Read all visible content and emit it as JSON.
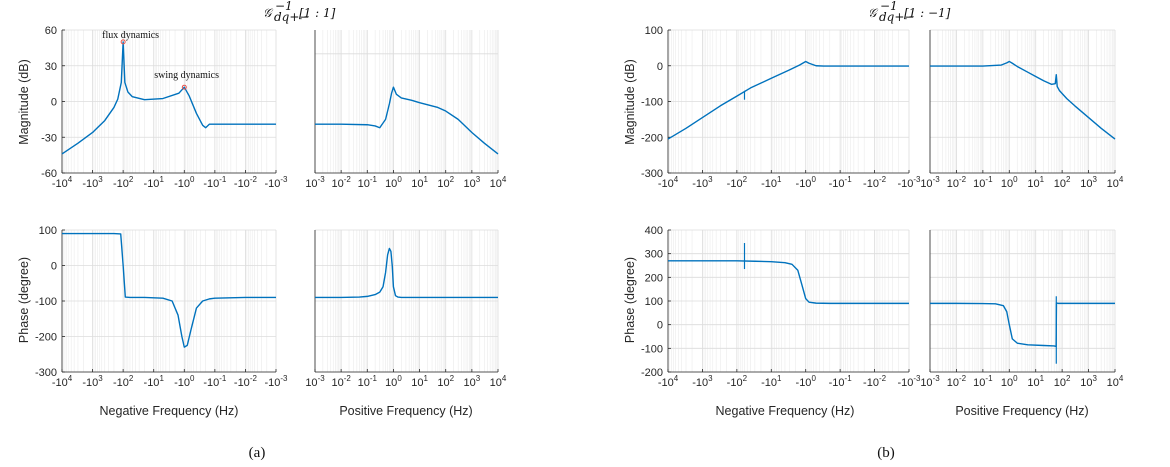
{
  "colors": {
    "line": "#0072BD",
    "marker": "#E8534A",
    "axis": "#262626",
    "grid": "#DCDCDC"
  },
  "figure": {
    "panel_a": {
      "title": {
        "main": "𝒢",
        "sup": "−1",
        "sub": "dq+−",
        "arg": "[1 : 1]"
      },
      "caption": "(a)",
      "annotations": [
        "flux dynamics",
        "swing dynamics"
      ],
      "xlabels": [
        "Negative Frequency (Hz)",
        "Positive Frequency (Hz)"
      ],
      "ylabels": [
        "Magnitude (dB)",
        "Phase (degree)"
      ]
    },
    "panel_b": {
      "title": {
        "main": "𝒢",
        "sup": "−1",
        "sub": "dq+−",
        "arg": "[1 : −1]"
      },
      "caption": "(b)",
      "xlabels": [
        "Negative Frequency (Hz)",
        "Positive Frequency (Hz)"
      ],
      "ylabels": [
        "Magnitude (dB)",
        "Phase (degree)"
      ]
    }
  },
  "chart_data": [
    {
      "type": "line",
      "panel": "a",
      "subplot": "magnitude-negative",
      "xscale": "log",
      "x_axis": "negative",
      "xlim": [
        -10000,
        -0.001
      ],
      "xticklabels": [
        "-10^4",
        "-10^3",
        "-10^2",
        "-10^1",
        "-10^0",
        "-10^-1",
        "-10^-2",
        "-10^-3"
      ],
      "ylabel": "Magnitude (dB)",
      "ylim": [
        -60,
        60
      ],
      "yticks": [
        "60",
        "30",
        "0",
        "-30",
        "-60"
      ],
      "grid": true,
      "series": [
        {
          "x": [
            -10000,
            -3000,
            -1000,
            -400,
            -200,
            -150,
            -115,
            -100,
            -88,
            -70,
            -50,
            -20,
            -5,
            -1.5,
            -1,
            -0.7,
            -0.4,
            -0.25,
            -0.2,
            -0.15,
            -0.1,
            -0.05,
            -0.01,
            -0.001
          ],
          "y": [
            -44,
            -35,
            -26,
            -16,
            -5,
            2,
            16,
            50,
            16,
            8,
            4,
            1.5,
            2.5,
            7,
            12,
            5,
            -10,
            -20,
            -22,
            -19,
            -19,
            -19,
            -19,
            -19
          ]
        }
      ],
      "markers": [
        {
          "x": -100,
          "y": 50,
          "label": "flux dynamics"
        },
        {
          "x": -1,
          "y": 12,
          "label": "swing dynamics"
        }
      ]
    },
    {
      "type": "line",
      "panel": "a",
      "subplot": "magnitude-positive",
      "xscale": "log",
      "xlim": [
        0.001,
        10000
      ],
      "xticklabels": [
        "10^-3",
        "10^-2",
        "10^-1",
        "10^0",
        "10^1",
        "10^2",
        "10^3",
        "10^4"
      ],
      "ylim": [
        -60,
        60
      ],
      "grid": true,
      "series": [
        {
          "x": [
            0.001,
            0.01,
            0.1,
            0.2,
            0.3,
            0.5,
            0.7,
            0.85,
            1,
            1.3,
            2,
            5,
            10,
            50,
            100,
            300,
            1000,
            3000,
            10000
          ],
          "y": [
            -19,
            -19,
            -19.5,
            -20.5,
            -22,
            -15,
            -2,
            7,
            12,
            6,
            3,
            1,
            -1,
            -5,
            -8,
            -15,
            -26,
            -35,
            -44
          ]
        }
      ]
    },
    {
      "type": "line",
      "panel": "a",
      "subplot": "phase-negative",
      "xscale": "log",
      "x_axis": "negative",
      "xlim": [
        -10000,
        -0.001
      ],
      "xticklabels": [
        "-10^4",
        "-10^3",
        "-10^2",
        "-10^1",
        "-10^0",
        "-10^-1",
        "-10^-2",
        "-10^-3"
      ],
      "xlabel": "Negative Frequency (Hz)",
      "ylabel": "Phase (degree)",
      "ylim": [
        -300,
        100
      ],
      "yticks": [
        "100",
        "0",
        "-100",
        "-200",
        "-300"
      ],
      "grid": true,
      "series": [
        {
          "x": [
            -10000,
            -1000,
            -200,
            -120,
            -100,
            -85,
            -60,
            -20,
            -5,
            -2.5,
            -1.6,
            -1.2,
            -1,
            -0.8,
            -0.6,
            -0.4,
            -0.25,
            -0.15,
            -0.1,
            -0.01,
            -0.001
          ],
          "y": [
            90,
            90,
            90,
            89,
            0,
            -89,
            -90,
            -90,
            -92,
            -100,
            -140,
            -200,
            -230,
            -225,
            -180,
            -120,
            -100,
            -94,
            -92,
            -90,
            -90
          ]
        }
      ]
    },
    {
      "type": "line",
      "panel": "a",
      "subplot": "phase-positive",
      "xscale": "log",
      "xlim": [
        0.001,
        10000
      ],
      "xticklabels": [
        "10^-3",
        "10^-2",
        "10^-1",
        "10^0",
        "10^1",
        "10^2",
        "10^3",
        "10^4"
      ],
      "xlabel": "Positive Frequency (Hz)",
      "ylim": [
        -300,
        100
      ],
      "grid": true,
      "series": [
        {
          "x": [
            0.001,
            0.01,
            0.05,
            0.1,
            0.2,
            0.3,
            0.4,
            0.5,
            0.6,
            0.7,
            0.8,
            0.9,
            1,
            1.2,
            1.5,
            2,
            5,
            100,
            10000
          ],
          "y": [
            -90,
            -90,
            -89,
            -87,
            -82,
            -75,
            -60,
            -20,
            30,
            48,
            40,
            0,
            -60,
            -85,
            -89,
            -90,
            -90,
            -90,
            -90
          ]
        }
      ]
    },
    {
      "type": "line",
      "panel": "b",
      "subplot": "magnitude-negative",
      "xscale": "log",
      "x_axis": "negative",
      "xlim": [
        -10000,
        -0.001
      ],
      "xticklabels": [
        "-10^4",
        "-10^3",
        "-10^2",
        "-10^1",
        "-10^0",
        "-10^-1",
        "-10^-2",
        "-10^-3"
      ],
      "ylabel": "Magnitude (dB)",
      "ylim": [
        -300,
        100
      ],
      "yticks": [
        "100",
        "0",
        "-100",
        "-200",
        "-300"
      ],
      "grid": true,
      "series": [
        {
          "x": [
            -10000,
            -3000,
            -1000,
            -300,
            -100,
            -40,
            -10,
            -3,
            -1.5,
            -1,
            -0.8,
            -0.5,
            -0.3,
            -0.1,
            -0.01,
            -0.001
          ],
          "y": [
            -205,
            -175,
            -145,
            -112,
            -85,
            -62,
            -35,
            -12,
            2,
            12,
            7,
            0,
            -1,
            -1,
            -1,
            -1
          ]
        }
      ],
      "glitches": [
        {
          "x": -60,
          "y_from": -70,
          "y_to": -95
        }
      ]
    },
    {
      "type": "line",
      "panel": "b",
      "subplot": "magnitude-positive",
      "xscale": "log",
      "xlim": [
        0.001,
        10000
      ],
      "xticklabels": [
        "10^-3",
        "10^-2",
        "10^-1",
        "10^0",
        "10^1",
        "10^2",
        "10^3",
        "10^4"
      ],
      "ylim": [
        -300,
        100
      ],
      "grid": true,
      "series": [
        {
          "x": [
            0.001,
            0.01,
            0.1,
            0.5,
            0.8,
            1,
            1.3,
            2,
            5,
            10,
            20,
            40,
            55,
            60,
            65,
            80,
            150,
            300,
            1000,
            3000,
            10000
          ],
          "y": [
            -1,
            -1,
            -1,
            2,
            8,
            12,
            7,
            -2,
            -18,
            -30,
            -42,
            -52,
            -50,
            -25,
            -58,
            -70,
            -92,
            -112,
            -145,
            -175,
            -205
          ]
        }
      ]
    },
    {
      "type": "line",
      "panel": "b",
      "subplot": "phase-negative",
      "xscale": "log",
      "x_axis": "negative",
      "xlim": [
        -10000,
        -0.001
      ],
      "xticklabels": [
        "-10^4",
        "-10^3",
        "-10^2",
        "-10^1",
        "-10^0",
        "-10^-1",
        "-10^-2",
        "-10^-3"
      ],
      "xlabel": "Negative Frequency (Hz)",
      "ylabel": "Phase (degree)",
      "ylim": [
        -200,
        400
      ],
      "yticks": [
        "400",
        "300",
        "200",
        "100",
        "0",
        "-100",
        "-200"
      ],
      "grid": true,
      "series": [
        {
          "x": [
            -10000,
            -1000,
            -100,
            -30,
            -10,
            -4,
            -2.5,
            -1.7,
            -1.3,
            -1,
            -0.8,
            -0.5,
            -0.2,
            -0.01,
            -0.001
          ],
          "y": [
            270,
            270,
            270,
            268,
            266,
            262,
            255,
            230,
            170,
            110,
            95,
            91,
            90,
            90,
            90
          ]
        }
      ],
      "glitches": [
        {
          "x": -60,
          "y_from": 345,
          "y_to": 235
        }
      ]
    },
    {
      "type": "line",
      "panel": "b",
      "subplot": "phase-positive",
      "xscale": "log",
      "xlim": [
        0.001,
        10000
      ],
      "xticklabels": [
        "10^-3",
        "10^-2",
        "10^-1",
        "10^0",
        "10^1",
        "10^2",
        "10^3",
        "10^4"
      ],
      "xlabel": "Positive Frequency (Hz)",
      "ylim": [
        -200,
        400
      ],
      "grid": true,
      "series": [
        {
          "x": [
            0.001,
            0.01,
            0.1,
            0.3,
            0.6,
            0.8,
            1,
            1.3,
            2,
            5,
            20,
            50,
            59,
            61,
            70,
            200,
            1000,
            10000
          ],
          "y": [
            90,
            90,
            89,
            88,
            80,
            55,
            0,
            -60,
            -78,
            -85,
            -88,
            -90,
            -92,
            92,
            90,
            90,
            90,
            90
          ]
        }
      ],
      "glitches": [
        {
          "x": 60,
          "y_from": 120,
          "y_to": -165
        }
      ]
    }
  ]
}
